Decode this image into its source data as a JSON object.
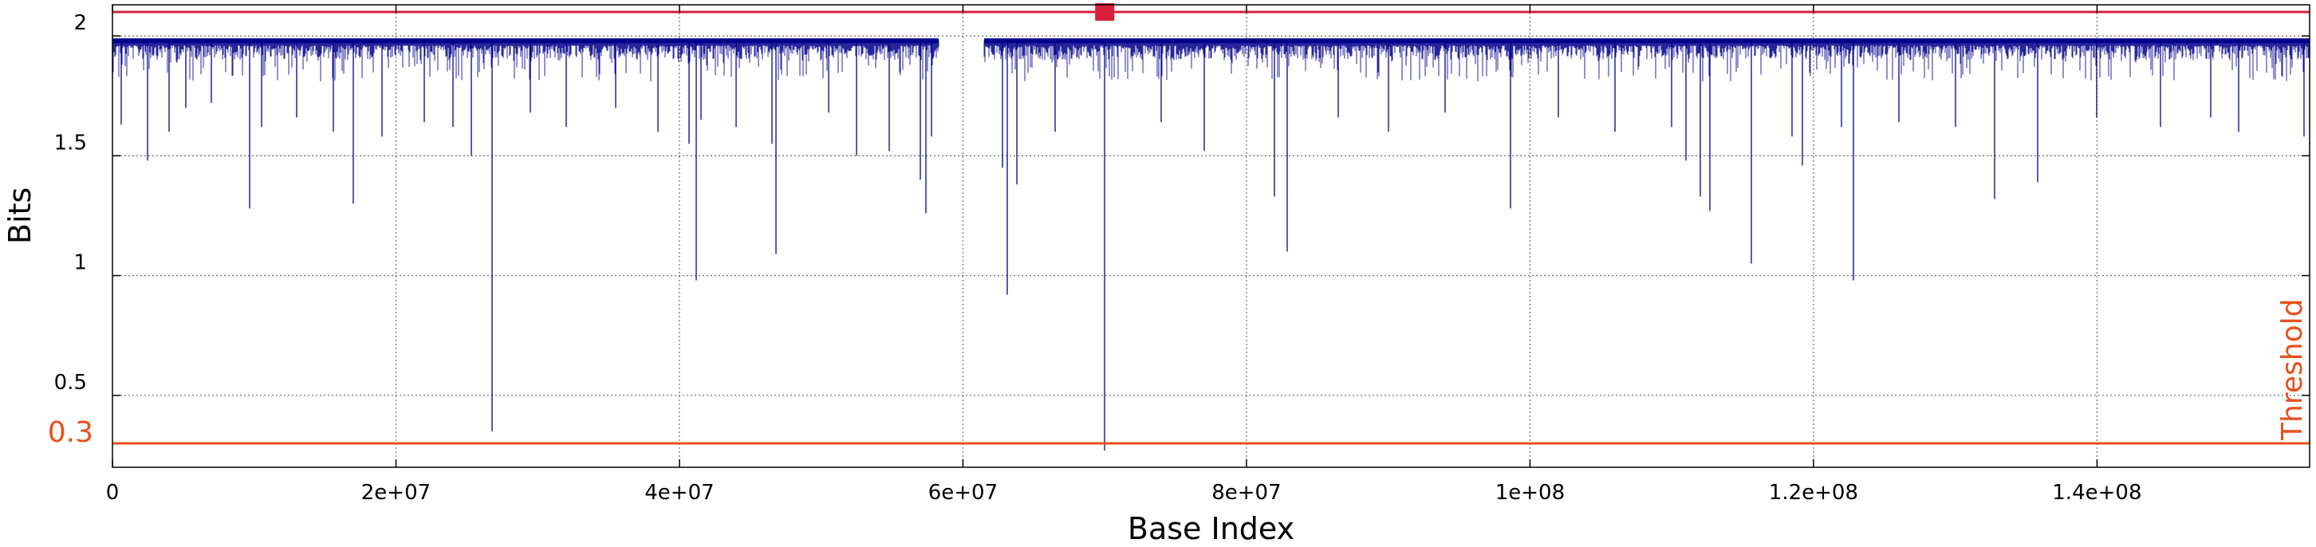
{
  "chart_data": {
    "type": "line",
    "xlabel": "Base Index",
    "ylabel": "Bits",
    "xlim": [
      0,
      155000000
    ],
    "ylim": [
      0.2,
      2.13
    ],
    "grid": true,
    "x_ticks": [
      {
        "value": 0,
        "label": "0"
      },
      {
        "value": 20000000,
        "label": "2e+07"
      },
      {
        "value": 40000000,
        "label": "4e+07"
      },
      {
        "value": 60000000,
        "label": "6e+07"
      },
      {
        "value": 80000000,
        "label": "8e+07"
      },
      {
        "value": 100000000,
        "label": "1e+08"
      },
      {
        "value": 120000000,
        "label": "1.2e+08"
      },
      {
        "value": 140000000,
        "label": "1.4e+08"
      }
    ],
    "y_ticks": [
      {
        "value": 0.5,
        "label": "0.5"
      },
      {
        "value": 1,
        "label": "1"
      },
      {
        "value": 1.5,
        "label": "1.5"
      },
      {
        "value": 2,
        "label": "2"
      }
    ],
    "threshold": {
      "value": 0.3,
      "label": "Threshold",
      "value_label": "0.3",
      "color": "#e8501c"
    },
    "reference_line": {
      "value": 2.1,
      "color": "#d6203a",
      "marker_x": 70000000
    },
    "series": [
      {
        "color": "#00008b",
        "baseline": 1.98,
        "segments": [
          [
            0,
            58300000
          ],
          [
            61500000,
            155000000
          ]
        ],
        "dips": [
          [
            600000,
            1.63
          ],
          [
            2500000,
            1.48
          ],
          [
            4000000,
            1.6
          ],
          [
            5200000,
            1.7
          ],
          [
            7000000,
            1.72
          ],
          [
            9700000,
            1.28
          ],
          [
            10500000,
            1.62
          ],
          [
            13000000,
            1.66
          ],
          [
            15600000,
            1.6
          ],
          [
            17000000,
            1.3
          ],
          [
            19000000,
            1.58
          ],
          [
            22000000,
            1.64
          ],
          [
            24000000,
            1.62
          ],
          [
            25300000,
            1.5
          ],
          [
            26800000,
            0.35
          ],
          [
            29500000,
            1.68
          ],
          [
            32000000,
            1.62
          ],
          [
            35500000,
            1.7
          ],
          [
            38500000,
            1.6
          ],
          [
            40700000,
            1.55
          ],
          [
            41200000,
            0.98
          ],
          [
            41500000,
            1.65
          ],
          [
            44000000,
            1.62
          ],
          [
            46500000,
            1.55
          ],
          [
            46800000,
            1.09
          ],
          [
            50500000,
            1.68
          ],
          [
            52500000,
            1.5
          ],
          [
            54800000,
            1.52
          ],
          [
            57000000,
            1.4
          ],
          [
            57400000,
            1.26
          ],
          [
            57800000,
            1.58
          ],
          [
            62800000,
            1.45
          ],
          [
            63100000,
            0.92
          ],
          [
            63800000,
            1.38
          ],
          [
            66500000,
            1.6
          ],
          [
            70000000,
            0.27
          ],
          [
            74000000,
            1.64
          ],
          [
            77000000,
            1.52
          ],
          [
            82000000,
            1.33
          ],
          [
            82900000,
            1.1
          ],
          [
            86500000,
            1.66
          ],
          [
            90000000,
            1.6
          ],
          [
            94000000,
            1.68
          ],
          [
            98600000,
            1.28
          ],
          [
            102000000,
            1.66
          ],
          [
            106000000,
            1.6
          ],
          [
            110000000,
            1.62
          ],
          [
            111000000,
            1.48
          ],
          [
            112000000,
            1.33
          ],
          [
            112700000,
            1.27
          ],
          [
            115600000,
            1.05
          ],
          [
            118500000,
            1.58
          ],
          [
            119200000,
            1.46
          ],
          [
            122000000,
            1.62
          ],
          [
            122800000,
            0.98
          ],
          [
            126000000,
            1.64
          ],
          [
            130000000,
            1.62
          ],
          [
            132800000,
            1.32
          ],
          [
            135800000,
            1.39
          ],
          [
            140000000,
            1.66
          ],
          [
            144500000,
            1.62
          ],
          [
            148000000,
            1.66
          ],
          [
            150000000,
            1.6
          ],
          [
            154600000,
            1.58
          ]
        ]
      }
    ]
  }
}
